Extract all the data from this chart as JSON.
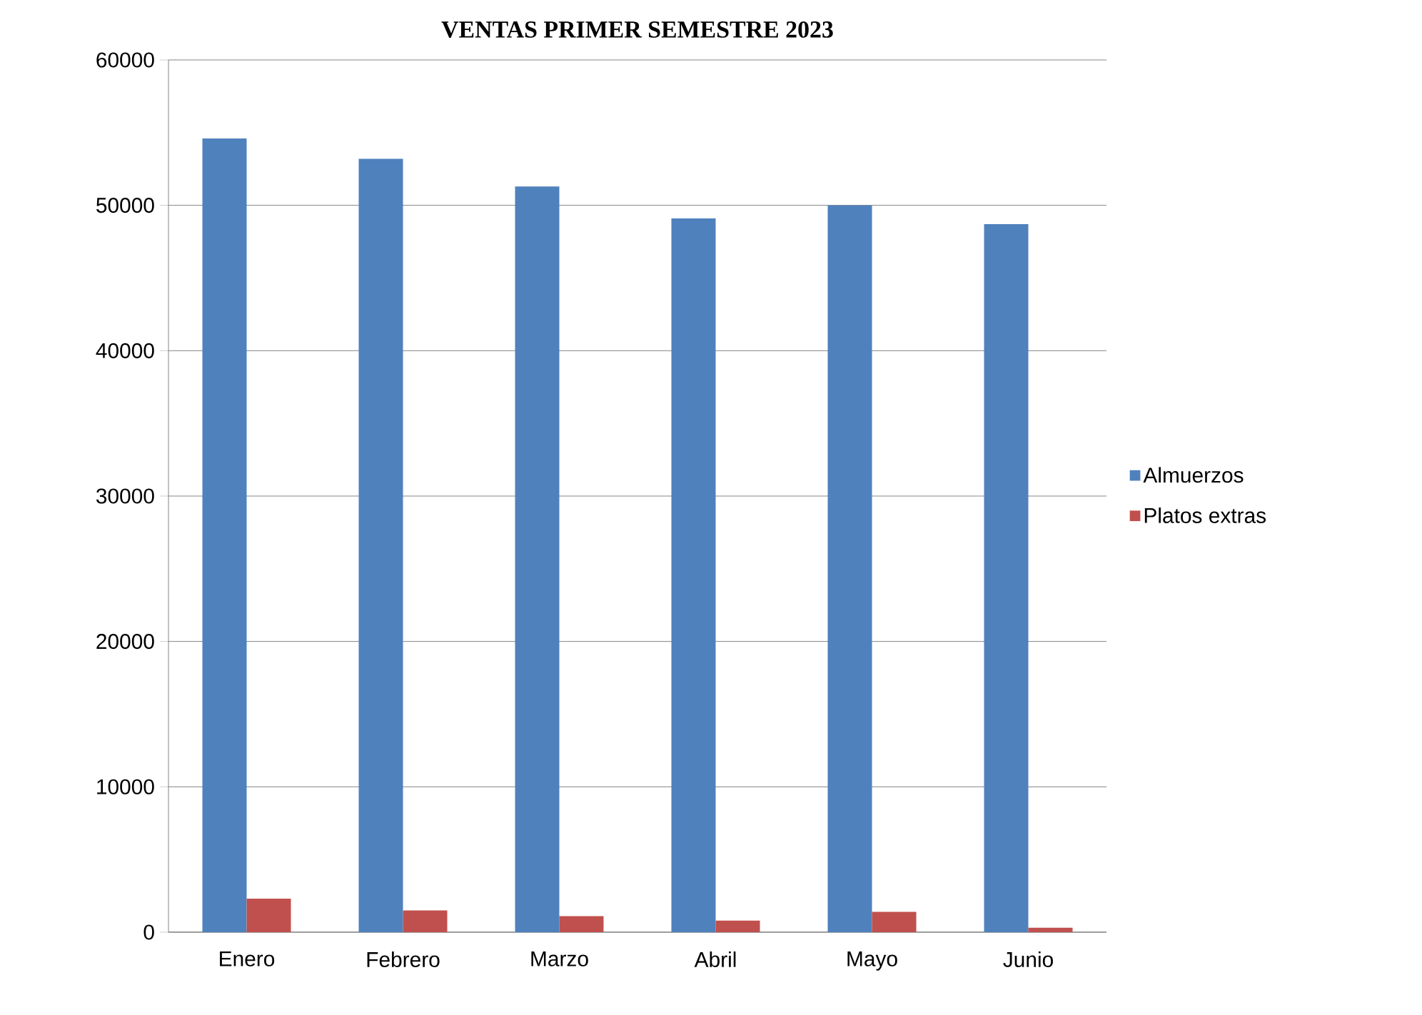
{
  "chart_data": {
    "type": "bar",
    "title": "VENTAS PRIMER SEMESTRE 2023",
    "categories": [
      "Enero",
      "Febrero",
      "Marzo",
      "Abril",
      "Mayo",
      "Junio"
    ],
    "series": [
      {
        "name": "Almuerzos",
        "color": "#4f81bd",
        "values": [
          54600,
          53200,
          51300,
          49100,
          50000,
          48700
        ]
      },
      {
        "name": "Platos extras",
        "color": "#c0504d",
        "values": [
          2300,
          1500,
          1100,
          800,
          1400,
          300
        ]
      }
    ],
    "ylim": [
      0,
      60000
    ],
    "yticks": [
      0,
      10000,
      20000,
      30000,
      40000,
      50000,
      60000
    ],
    "grid": "y",
    "legend": "right"
  }
}
